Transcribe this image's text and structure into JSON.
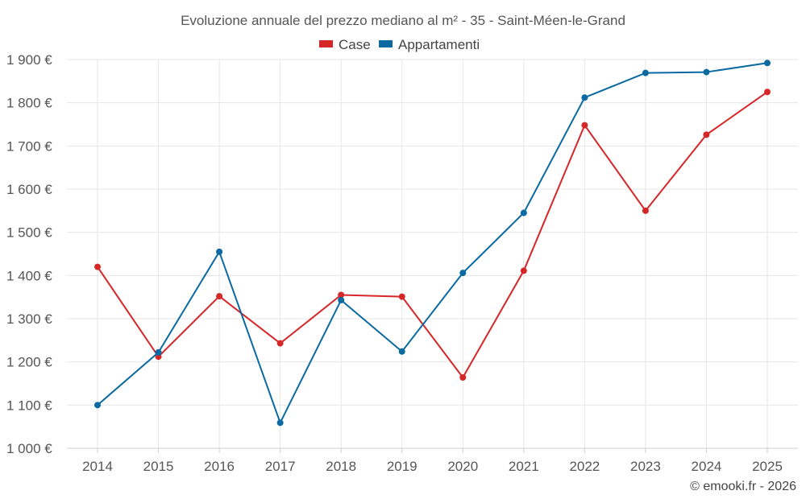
{
  "chart_data": {
    "type": "line",
    "title": "Evoluzione annuale del prezzo mediano al m² - 35 - Saint-Méen-le-Grand",
    "categories": [
      "2014",
      "2015",
      "2016",
      "2017",
      "2018",
      "2019",
      "2020",
      "2021",
      "2022",
      "2023",
      "2024",
      "2025"
    ],
    "series": [
      {
        "name": "Case",
        "color": "#d62728",
        "values": [
          1420,
          1212,
          1352,
          1243,
          1355,
          1351,
          1164,
          1411,
          1748,
          1550,
          1726,
          1825
        ]
      },
      {
        "name": "Appartamenti",
        "color": "#0a6aa1",
        "values": [
          1100,
          1222,
          1455,
          1059,
          1343,
          1224,
          1406,
          1545,
          1812,
          1869,
          1871,
          1892
        ]
      }
    ],
    "ylim": [
      1000,
      1900
    ],
    "yticks": [
      1000,
      1100,
      1200,
      1300,
      1400,
      1500,
      1600,
      1700,
      1800,
      1900
    ],
    "ytick_labels": [
      "1 000 €",
      "1 100 €",
      "1 200 €",
      "1 300 €",
      "1 400 €",
      "1 500 €",
      "1 600 €",
      "1 700 €",
      "1 800 €",
      "1 900 €"
    ],
    "xlabel": "",
    "ylabel": "",
    "grid": true,
    "legend": "top-center"
  },
  "credit": "© emooki.fr - 2026"
}
